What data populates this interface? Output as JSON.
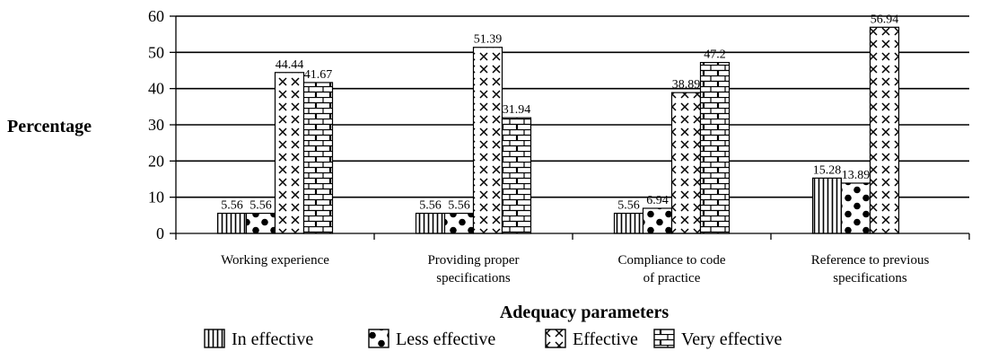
{
  "chart_data": {
    "type": "bar",
    "ylabel": "Percentage",
    "xlabel": "Adequacy parameters",
    "ylim": [
      0,
      60
    ],
    "yticks": [
      0,
      10,
      20,
      30,
      40,
      50,
      60
    ],
    "grid": true,
    "legend_position": "bottom",
    "categories": [
      [
        "Working experience"
      ],
      [
        "Providing proper",
        "specifications"
      ],
      [
        "Compliance to code",
        "of practice"
      ],
      [
        "Reference to previous",
        "specifications"
      ]
    ],
    "series": [
      {
        "name": "In effective",
        "pattern": "vertical-lines",
        "values": [
          5.56,
          5.56,
          5.56,
          15.28
        ],
        "labels": [
          "5.56",
          "5.56",
          "5.56",
          "15.28"
        ]
      },
      {
        "name": "Less effective",
        "pattern": "dots",
        "values": [
          5.56,
          5.56,
          6.94,
          13.89
        ],
        "labels": [
          "5.56",
          "5.56",
          "6.94",
          "13.89"
        ]
      },
      {
        "name": "Effective",
        "pattern": "crosses",
        "values": [
          44.44,
          51.39,
          38.89,
          56.94
        ],
        "labels": [
          "44.44",
          "51.39",
          "38.89",
          "56.94"
        ]
      },
      {
        "name": "Very effective",
        "pattern": "bricks",
        "values": [
          41.67,
          31.94,
          47.2,
          null
        ],
        "labels": [
          "41.67",
          "31.94",
          "47.2",
          ""
        ]
      }
    ]
  }
}
